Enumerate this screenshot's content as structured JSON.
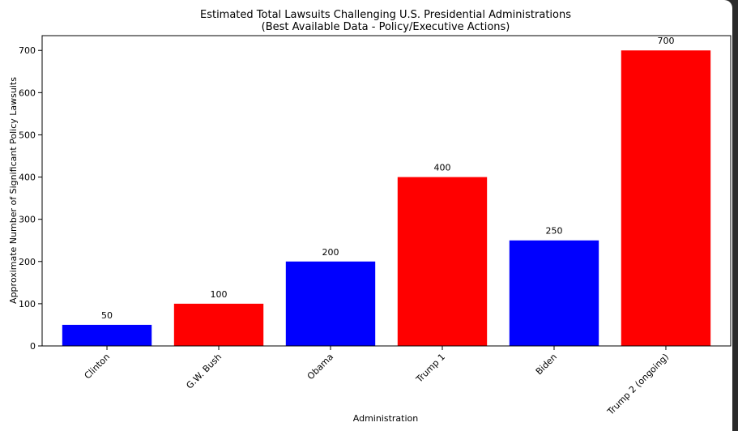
{
  "chart_data": {
    "type": "bar",
    "title": "Estimated Total Lawsuits Challenging U.S. Presidential Administrations",
    "subtitle": "(Best Available Data - Policy/Executive Actions)",
    "xlabel": "Administration",
    "ylabel": "Approximate Number of Significant Policy Lawsuits",
    "categories": [
      "Clinton",
      "G.W. Bush",
      "Obama",
      "Trump 1",
      "Biden",
      "Trump 2 (ongoing)"
    ],
    "values": [
      50,
      100,
      200,
      400,
      250,
      700
    ],
    "bar_colors": [
      "#0000ff",
      "#ff0000",
      "#0000ff",
      "#ff0000",
      "#0000ff",
      "#ff0000"
    ],
    "yticks": [
      0,
      100,
      200,
      300,
      400,
      500,
      600,
      700
    ],
    "ylim": [
      0,
      735
    ],
    "grid": false,
    "legend": "none"
  }
}
